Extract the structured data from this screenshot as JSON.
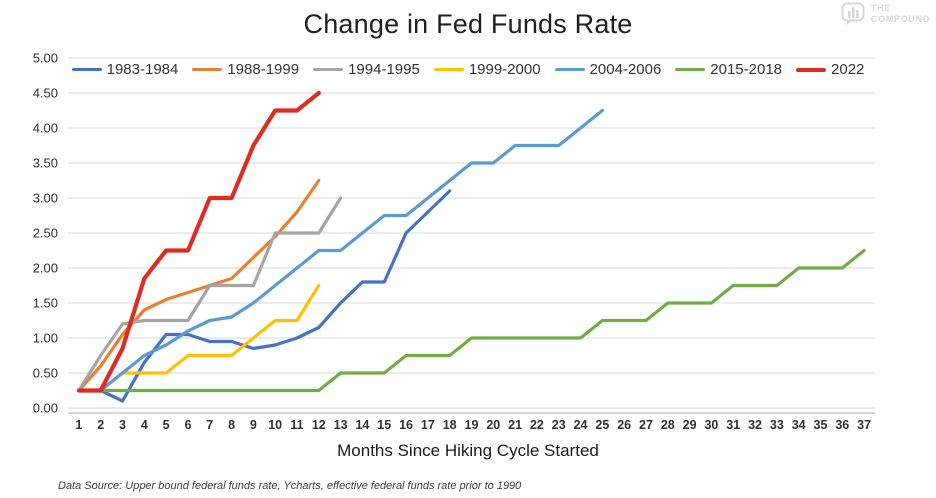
{
  "title": "Change in Fed Funds Rate",
  "logo": {
    "line1": "THE",
    "line2": "COMPOUND"
  },
  "footer": "Data Source: Upper bound federal funds rate, Ycharts, effective federal funds rate prior to 1990",
  "chart_data": {
    "type": "line",
    "title": "Change in Fed Funds Rate",
    "xlabel": "Months Since Hiking Cycle Started",
    "ylabel": "",
    "xlim": [
      1,
      37
    ],
    "ylim": [
      0,
      5
    ],
    "grid": true,
    "legend_position": "top",
    "yticks": [
      "0.00",
      "0.50",
      "1.00",
      "1.50",
      "2.00",
      "2.50",
      "3.00",
      "3.50",
      "4.00",
      "4.50",
      "5.00"
    ],
    "xticks": [
      1,
      2,
      3,
      4,
      5,
      6,
      7,
      8,
      9,
      10,
      11,
      12,
      13,
      14,
      15,
      16,
      17,
      18,
      19,
      20,
      21,
      22,
      23,
      24,
      25,
      26,
      27,
      28,
      29,
      30,
      31,
      32,
      33,
      34,
      35,
      36,
      37
    ],
    "grid_color": "#d9d9d9",
    "axis_line_color": "#bfbfbf",
    "series": [
      {
        "name": "1983-1984",
        "color": "#4472C4",
        "line_width": 3.2,
        "values": [
          0.25,
          0.25,
          0.1,
          0.65,
          1.05,
          1.05,
          0.95,
          0.95,
          0.85,
          0.9,
          1.0,
          1.15,
          1.5,
          1.8,
          1.8,
          2.5,
          2.8,
          3.1
        ]
      },
      {
        "name": "1988-1999",
        "color": "#ED7D31",
        "line_width": 3.2,
        "values": [
          0.25,
          0.6,
          1.05,
          1.4,
          1.55,
          1.65,
          1.75,
          1.85,
          2.15,
          2.45,
          2.8,
          3.25
        ]
      },
      {
        "name": "1994-1995",
        "color": "#A5A5A5",
        "line_width": 3.2,
        "values": [
          0.25,
          0.75,
          1.2,
          1.25,
          1.25,
          1.25,
          1.75,
          1.75,
          1.75,
          2.5,
          2.5,
          2.5,
          3.0
        ]
      },
      {
        "name": "1999-2000",
        "color": "#FFC000",
        "line_width": 3.2,
        "values": [
          0.25,
          0.25,
          0.5,
          0.5,
          0.5,
          0.75,
          0.75,
          0.75,
          1.0,
          1.25,
          1.25,
          1.75
        ]
      },
      {
        "name": "2004-2006",
        "color": "#5B9BD5",
        "line_width": 3.2,
        "values": [
          0.25,
          0.25,
          0.5,
          0.75,
          0.9,
          1.1,
          1.25,
          1.3,
          1.5,
          1.75,
          2.0,
          2.25,
          2.25,
          2.5,
          2.75,
          2.75,
          3.0,
          3.25,
          3.5,
          3.5,
          3.75,
          3.75,
          3.75,
          4.0,
          4.25
        ]
      },
      {
        "name": "2015-2018",
        "color": "#70AD47",
        "line_width": 3.2,
        "values": [
          0.25,
          0.25,
          0.25,
          0.25,
          0.25,
          0.25,
          0.25,
          0.25,
          0.25,
          0.25,
          0.25,
          0.25,
          0.5,
          0.5,
          0.5,
          0.75,
          0.75,
          0.75,
          1.0,
          1.0,
          1.0,
          1.0,
          1.0,
          1.0,
          1.25,
          1.25,
          1.25,
          1.5,
          1.5,
          1.5,
          1.75,
          1.75,
          1.75,
          2.0,
          2.0,
          2.0,
          2.25
        ]
      },
      {
        "name": "2022",
        "color": "#E02B20",
        "line_width": 4.2,
        "values": [
          0.25,
          0.25,
          0.85,
          1.85,
          2.25,
          2.25,
          3.0,
          3.0,
          3.75,
          4.25,
          4.25,
          4.5
        ]
      }
    ]
  }
}
